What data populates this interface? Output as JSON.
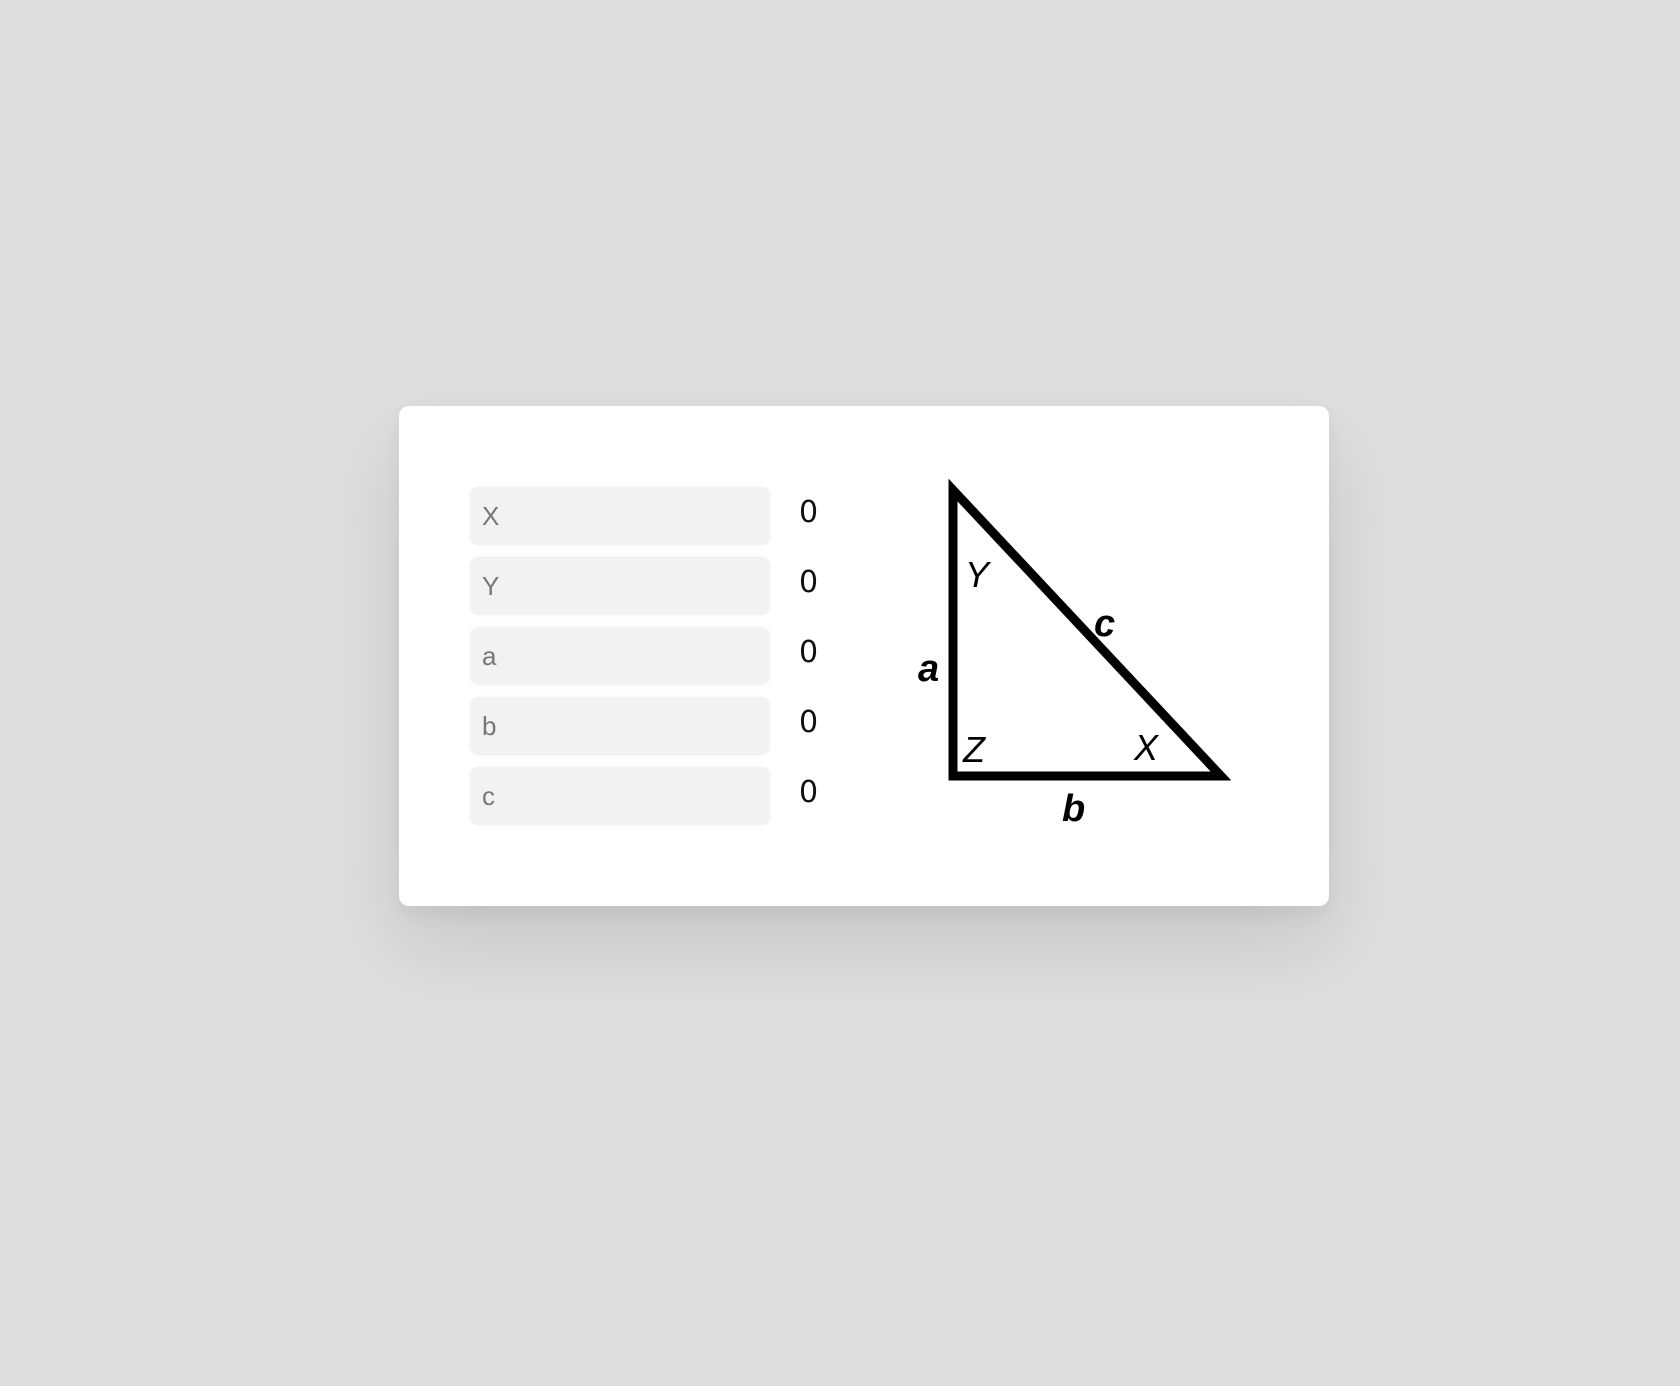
{
  "fields": [
    {
      "placeholder": "X",
      "value": "",
      "result": "0"
    },
    {
      "placeholder": "Y",
      "value": "",
      "result": "0"
    },
    {
      "placeholder": "a",
      "value": "",
      "result": "0"
    },
    {
      "placeholder": "b",
      "value": "",
      "result": "0"
    },
    {
      "placeholder": "c",
      "value": "",
      "result": "0"
    }
  ],
  "diagram": {
    "angle_top": "Y",
    "angle_right_corner": "Z",
    "angle_bottom_right": "X",
    "side_left": "a",
    "side_bottom": "b",
    "side_hypotenuse": "c"
  }
}
